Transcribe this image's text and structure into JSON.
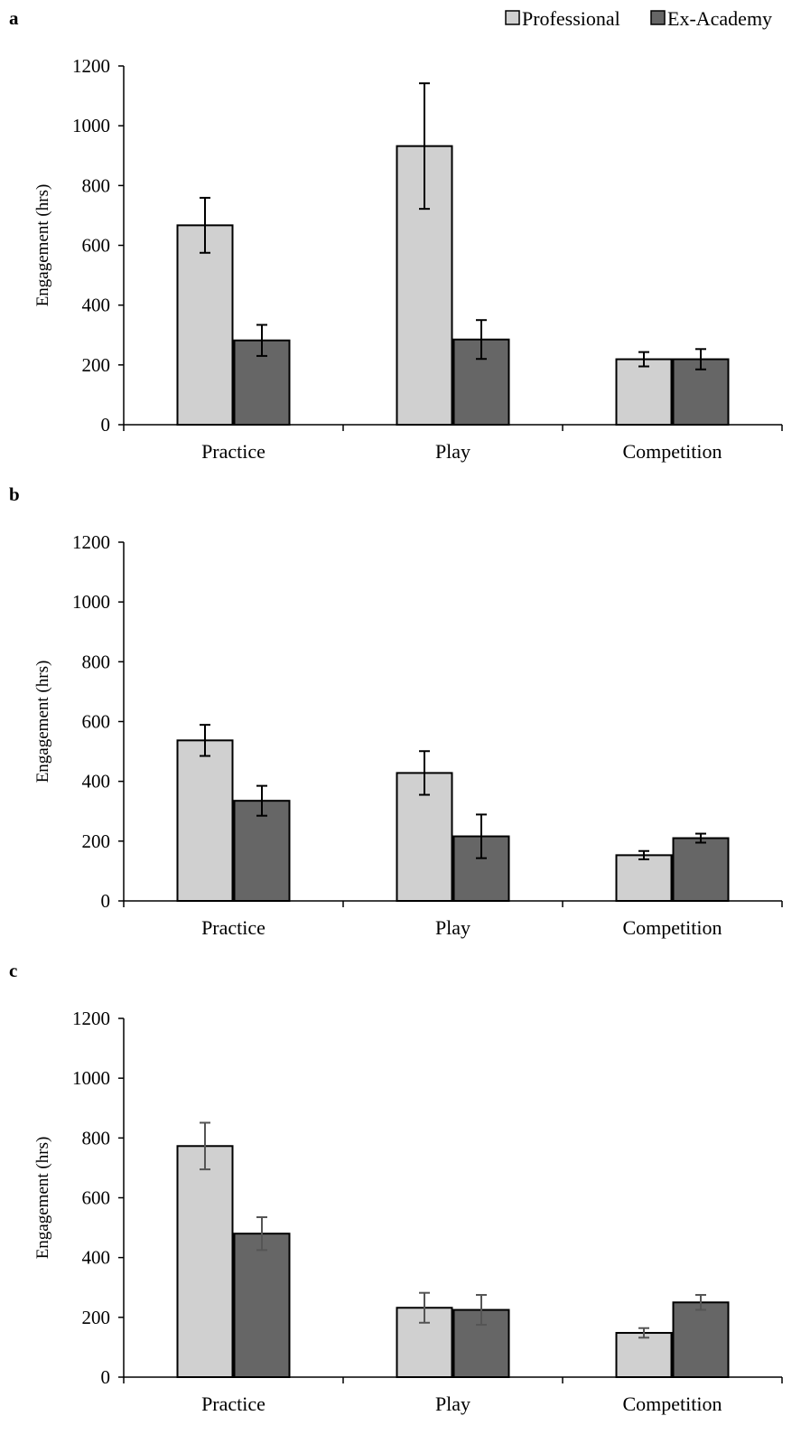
{
  "legend": [
    {
      "label": "Professional",
      "color": "#d0d0d0"
    },
    {
      "label": "Ex-Academy",
      "color": "#666666"
    }
  ],
  "chart_data": [
    {
      "panel_label": "a",
      "type": "bar",
      "categories": [
        "Practice",
        "Play",
        "Competition"
      ],
      "ylabel": "Engagement (hrs)",
      "ylim": [
        0,
        1200
      ],
      "yticks": [
        0,
        200,
        400,
        600,
        800,
        1000,
        1200
      ],
      "series": [
        {
          "name": "Professional",
          "values": [
            667,
            932,
            219
          ],
          "errors": [
            92,
            210,
            24
          ]
        },
        {
          "name": "Ex-Academy",
          "values": [
            282,
            285,
            219
          ],
          "errors": [
            52,
            65,
            34
          ]
        }
      ]
    },
    {
      "panel_label": "b",
      "type": "bar",
      "categories": [
        "Practice",
        "Play",
        "Competition"
      ],
      "ylabel": "Engagement (hrs)",
      "ylim": [
        0,
        1200
      ],
      "yticks": [
        0,
        200,
        400,
        600,
        800,
        1000,
        1200
      ],
      "series": [
        {
          "name": "Professional",
          "values": [
            537,
            428,
            153
          ],
          "errors": [
            52,
            73,
            14
          ]
        },
        {
          "name": "Ex-Academy",
          "values": [
            335,
            216,
            210
          ],
          "errors": [
            50,
            73,
            15
          ]
        }
      ]
    },
    {
      "panel_label": "c",
      "type": "bar",
      "categories": [
        "Practice",
        "Play",
        "Competition"
      ],
      "ylabel": "Engagement (hrs)",
      "ylim": [
        0,
        1200
      ],
      "yticks": [
        0,
        200,
        400,
        600,
        800,
        1000,
        1200
      ],
      "series": [
        {
          "name": "Professional",
          "values": [
            773,
            232,
            148
          ],
          "errors": [
            78,
            50,
            16
          ]
        },
        {
          "name": "Ex-Academy",
          "values": [
            480,
            225,
            250
          ],
          "errors": [
            55,
            50,
            25
          ]
        }
      ]
    }
  ]
}
